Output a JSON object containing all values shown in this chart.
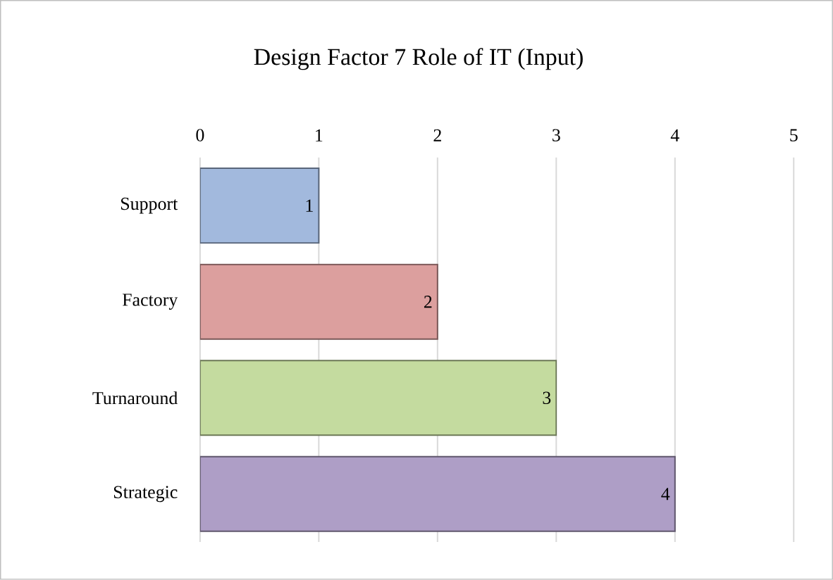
{
  "chart_data": {
    "type": "bar",
    "orientation": "horizontal",
    "title": "Design Factor 7 Role of IT (Input)",
    "categories": [
      "Support",
      "Factory",
      "Turnaround",
      "Strategic"
    ],
    "values": [
      1,
      2,
      3,
      4
    ],
    "colors": [
      "#a2b9dd",
      "#dc9f9e",
      "#c4db9f",
      "#ae9ec6"
    ],
    "xlim": [
      0,
      5
    ],
    "xticks": [
      0,
      1,
      2,
      3,
      4,
      5
    ],
    "grid": "x",
    "data_labels": true
  }
}
